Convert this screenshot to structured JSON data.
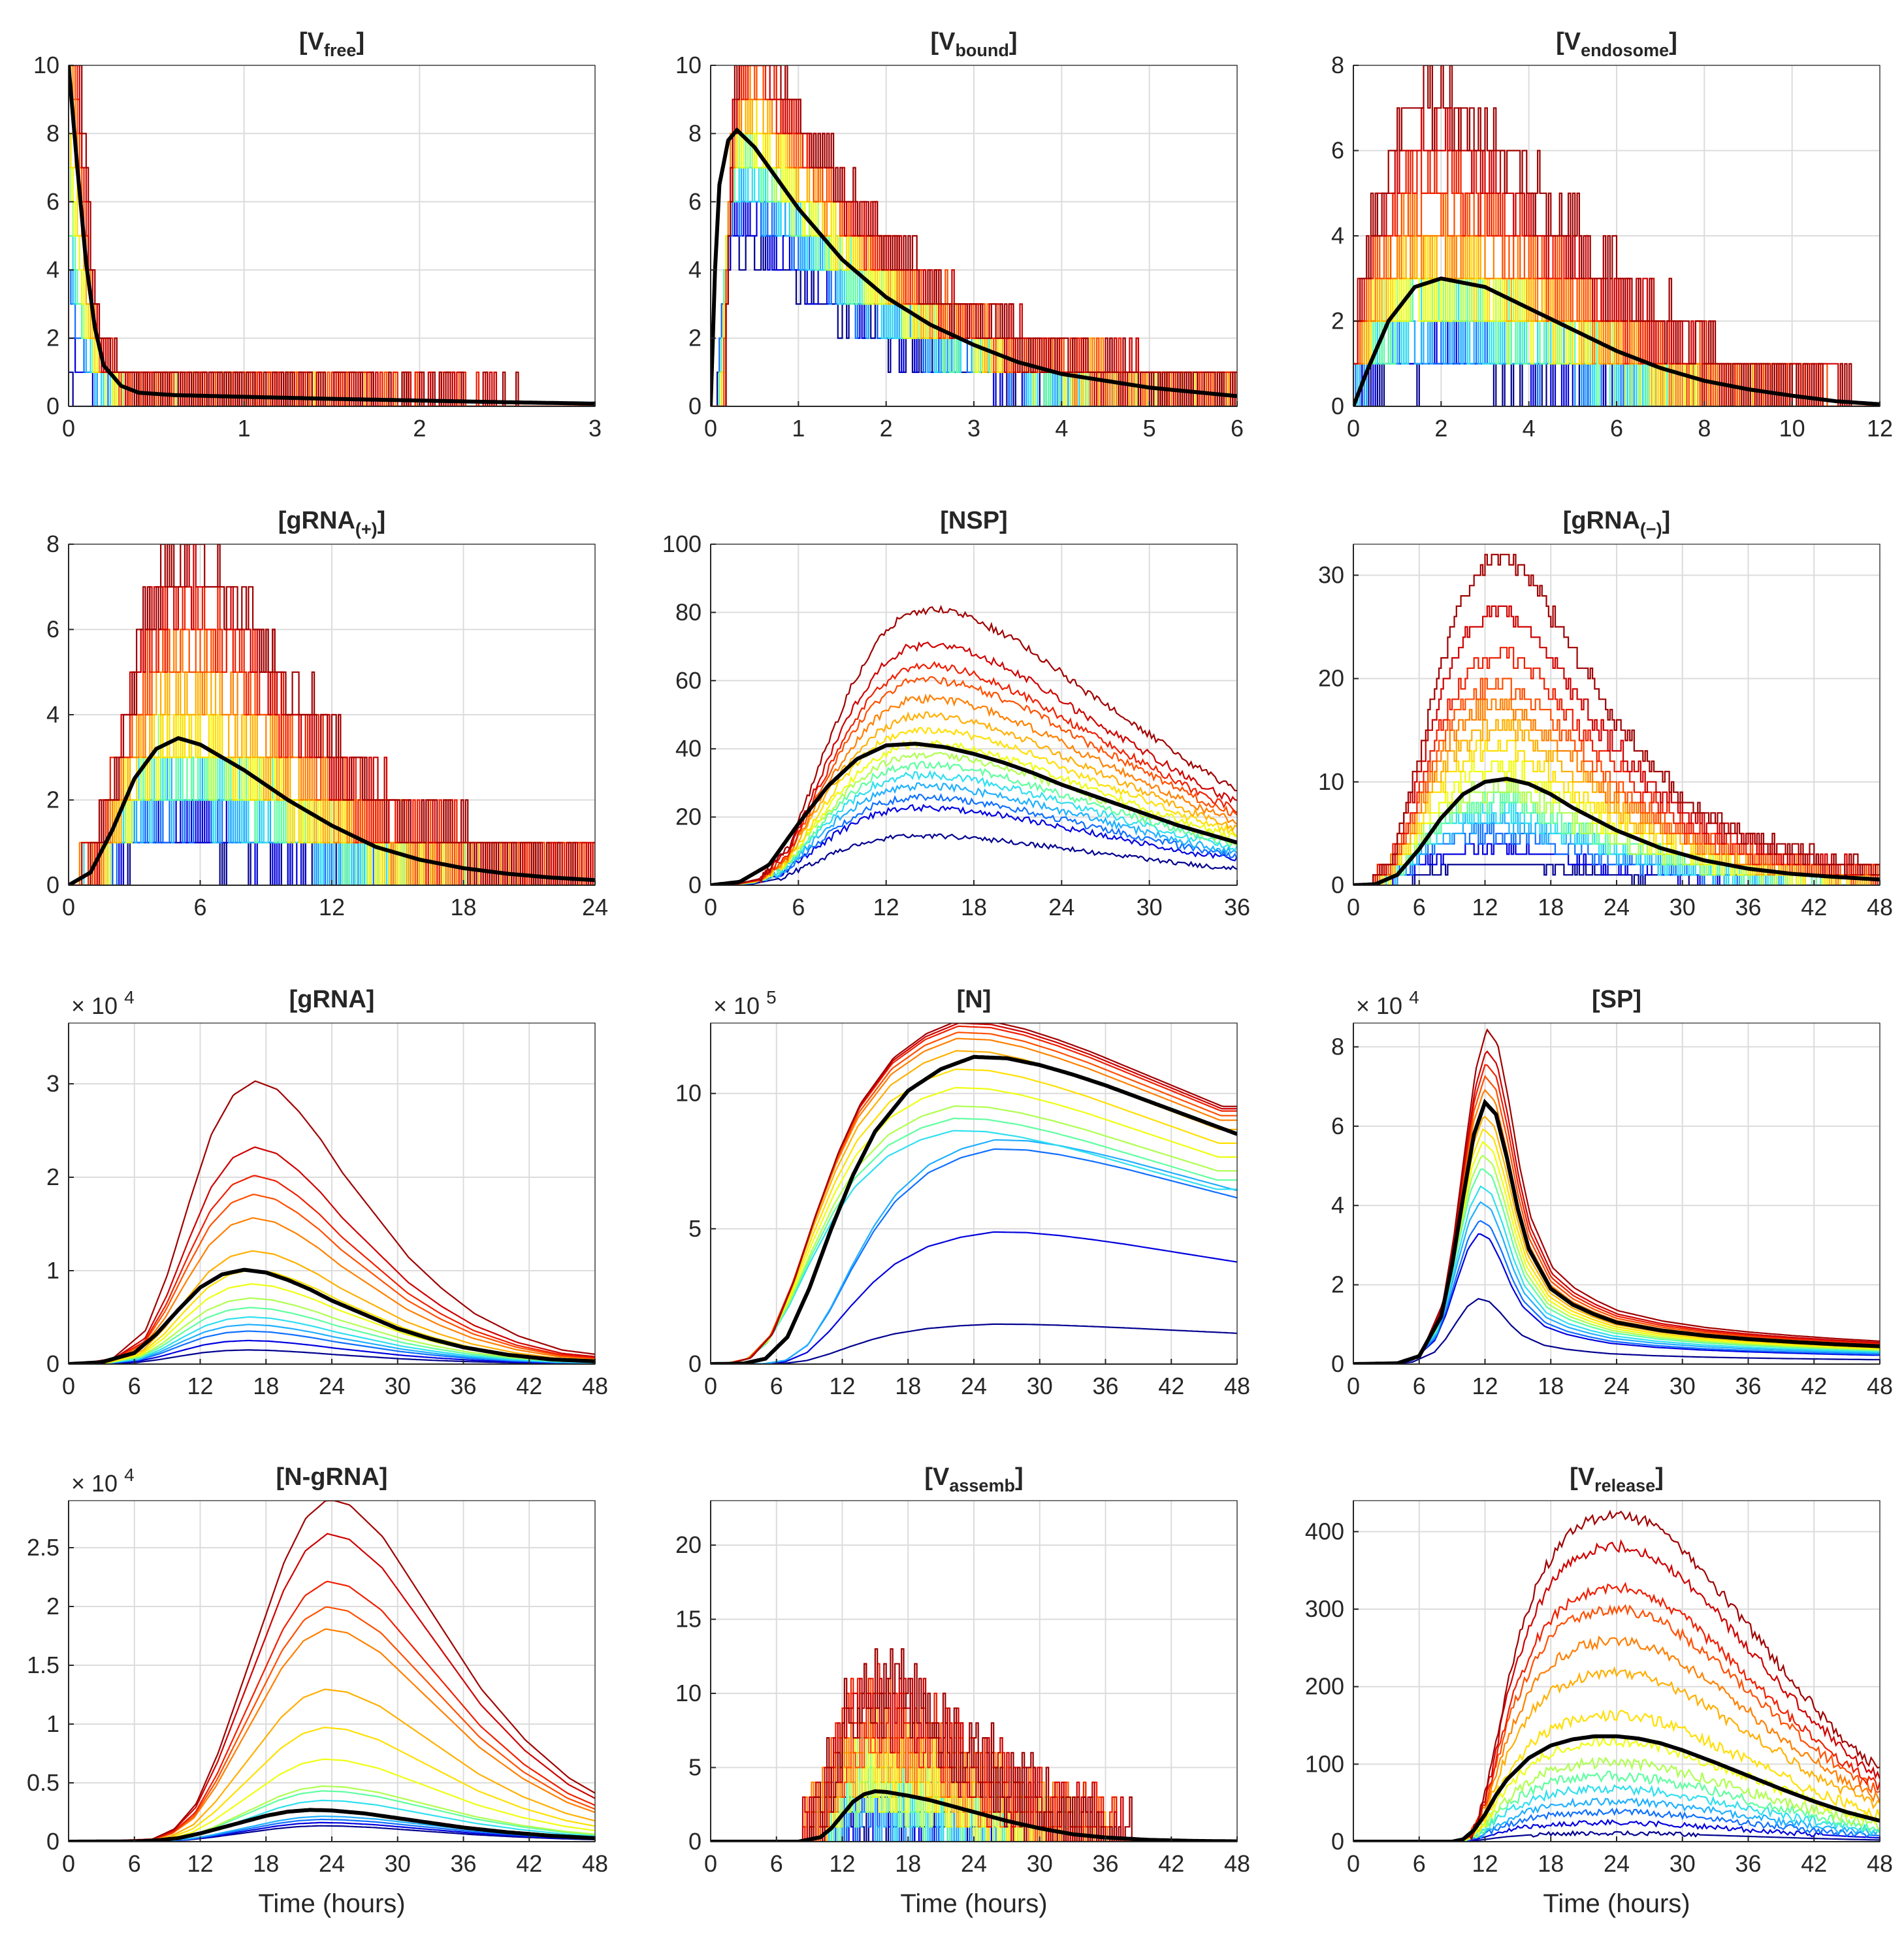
{
  "figure": {
    "xlabel": "Time (hours)",
    "mean_color": "#000000",
    "traj_colors": [
      "#00008F",
      "#0000DF",
      "#0F6FFF",
      "#1FAFFF",
      "#2FDFEF",
      "#5FFF9F",
      "#AFFF4F",
      "#EFFF0F",
      "#FFDF00",
      "#FFAF00",
      "#FF7F00",
      "#FF4F00",
      "#EF1F00",
      "#CF0000",
      "#9F0000"
    ]
  },
  "chart_data": [
    {
      "type": "line",
      "title": "[V",
      "title_sub": "free",
      "title_end": "]",
      "step": true,
      "noise": 0.9,
      "xlim": [
        0,
        3
      ],
      "ylim": [
        0,
        10
      ],
      "xticks": [
        0,
        1,
        2,
        3
      ],
      "xtick_labels": [
        "0",
        "1",
        "2",
        "3"
      ],
      "yticks": [
        0,
        2,
        4,
        6,
        8,
        10
      ],
      "ytick_labels": [
        "0",
        "2",
        "4",
        "6",
        "8",
        "10"
      ],
      "multiplier_base": "",
      "multiplier_exp": "",
      "xlabel": "",
      "mean": {
        "x": [
          0,
          0.05,
          0.1,
          0.15,
          0.2,
          0.3,
          0.4,
          0.6,
          1,
          1.5,
          2,
          2.5,
          3
        ],
        "y": [
          10,
          7,
          4.2,
          2.3,
          1.2,
          0.6,
          0.4,
          0.33,
          0.28,
          0.22,
          0.17,
          0.12,
          0.08
        ]
      },
      "traj_scales": [
        0.1,
        0.3,
        0.5,
        0.6,
        0.7,
        0.8,
        0.9,
        1,
        1.1,
        1.2,
        1.3,
        1.4,
        1.5,
        1.6,
        1.8
      ]
    },
    {
      "type": "line",
      "title": "[V",
      "title_sub": "bound",
      "title_end": "]",
      "step": true,
      "noise": 1.4,
      "xlim": [
        0,
        6
      ],
      "ylim": [
        0,
        10
      ],
      "xticks": [
        0,
        1,
        2,
        3,
        4,
        5,
        6
      ],
      "xtick_labels": [
        "0",
        "1",
        "2",
        "3",
        "4",
        "5",
        "6"
      ],
      "yticks": [
        0,
        2,
        4,
        6,
        8,
        10
      ],
      "ytick_labels": [
        "0",
        "2",
        "4",
        "6",
        "8",
        "10"
      ],
      "multiplier_base": "",
      "multiplier_exp": "",
      "xlabel": "",
      "mean": {
        "x": [
          0,
          0.05,
          0.1,
          0.2,
          0.3,
          0.5,
          1,
          1.5,
          2,
          2.5,
          3,
          3.5,
          4,
          5,
          6
        ],
        "y": [
          0,
          4,
          6.5,
          7.8,
          8.1,
          7.6,
          5.8,
          4.3,
          3.2,
          2.4,
          1.8,
          1.3,
          0.95,
          0.55,
          0.3
        ]
      },
      "traj_scales": [
        0.6,
        0.7,
        0.75,
        0.8,
        0.85,
        0.9,
        0.95,
        1,
        1.05,
        1.1,
        1.15,
        1.2,
        1.25,
        1.3,
        1.35
      ]
    },
    {
      "type": "line",
      "title": "[V",
      "title_sub": "endosome",
      "title_end": "]",
      "step": true,
      "noise": 1.4,
      "xlim": [
        0,
        12
      ],
      "ylim": [
        0,
        8
      ],
      "xticks": [
        0,
        2,
        4,
        6,
        8,
        10,
        12
      ],
      "xtick_labels": [
        "0",
        "2",
        "4",
        "6",
        "8",
        "10",
        "12"
      ],
      "yticks": [
        0,
        2,
        4,
        6,
        8
      ],
      "ytick_labels": [
        "0",
        "2",
        "4",
        "6",
        "8"
      ],
      "multiplier_base": "",
      "multiplier_exp": "",
      "xlabel": "",
      "mean": {
        "x": [
          0,
          0.3,
          0.8,
          1.4,
          2,
          3,
          4,
          5,
          6,
          7,
          8,
          9,
          10,
          11,
          12
        ],
        "y": [
          0,
          0.8,
          2,
          2.8,
          3,
          2.8,
          2.3,
          1.8,
          1.3,
          0.9,
          0.6,
          0.4,
          0.25,
          0.12,
          0.05
        ]
      },
      "traj_scales": [
        0.3,
        0.4,
        0.5,
        0.6,
        0.7,
        0.8,
        0.9,
        1,
        1.1,
        1.2,
        1.4,
        1.6,
        1.8,
        2.1,
        2.4
      ]
    },
    {
      "type": "line",
      "title": "[gRNA",
      "title_sub": "(+)",
      "title_end": "]",
      "step": true,
      "noise": 1.5,
      "xlim": [
        0,
        24
      ],
      "ylim": [
        0,
        8
      ],
      "xticks": [
        0,
        6,
        12,
        18,
        24
      ],
      "xtick_labels": [
        "0",
        "6",
        "12",
        "18",
        "24"
      ],
      "yticks": [
        0,
        2,
        4,
        6,
        8
      ],
      "ytick_labels": [
        "0",
        "2",
        "4",
        "6",
        "8"
      ],
      "multiplier_base": "",
      "multiplier_exp": "",
      "xlabel": "",
      "mean": {
        "x": [
          0,
          1,
          2,
          3,
          4,
          5,
          6,
          8,
          10,
          12,
          14,
          16,
          18,
          20,
          22,
          24
        ],
        "y": [
          0,
          0.3,
          1.3,
          2.5,
          3.2,
          3.45,
          3.3,
          2.7,
          2,
          1.4,
          0.9,
          0.6,
          0.4,
          0.27,
          0.18,
          0.12
        ]
      },
      "traj_scales": [
        0.3,
        0.4,
        0.5,
        0.6,
        0.7,
        0.8,
        0.9,
        1,
        1.1,
        1.3,
        1.5,
        1.7,
        1.9,
        2.1,
        2.3
      ]
    },
    {
      "type": "line",
      "title": "[NSP]",
      "title_sub": "",
      "title_end": "",
      "step": false,
      "noise": 2.2,
      "xlim": [
        0,
        36
      ],
      "ylim": [
        0,
        100
      ],
      "xticks": [
        0,
        6,
        12,
        18,
        24,
        30,
        36
      ],
      "xtick_labels": [
        "0",
        "6",
        "12",
        "18",
        "24",
        "30",
        "36"
      ],
      "yticks": [
        0,
        20,
        40,
        60,
        80,
        100
      ],
      "ytick_labels": [
        "0",
        "20",
        "40",
        "60",
        "80",
        "100"
      ],
      "multiplier_base": "",
      "multiplier_exp": "",
      "xlabel": "",
      "mean": {
        "x": [
          0,
          2,
          4,
          6,
          8,
          10,
          12,
          14,
          16,
          18,
          20,
          22,
          24,
          26,
          28,
          30,
          32,
          34,
          36
        ],
        "y": [
          0,
          1,
          6,
          18,
          29,
          37,
          41,
          41.5,
          40.5,
          38.5,
          36,
          33,
          29.5,
          26.5,
          23.5,
          20.5,
          17.5,
          15,
          12.5
        ]
      },
      "traj_scales": [
        0.35,
        0.55,
        0.62,
        0.7,
        0.78,
        0.85,
        0.92,
        1.0,
        1.1,
        1.2,
        1.32,
        1.45,
        1.55,
        1.7,
        1.95
      ]
    },
    {
      "type": "line",
      "title": "[gRNA",
      "title_sub": "(−)",
      "title_end": "]",
      "step": true,
      "noise": 1.8,
      "xlim": [
        0,
        48
      ],
      "ylim": [
        0,
        33
      ],
      "xticks": [
        0,
        6,
        12,
        18,
        24,
        30,
        36,
        42,
        48
      ],
      "xtick_labels": [
        "0",
        "6",
        "12",
        "18",
        "24",
        "30",
        "36",
        "42",
        "48"
      ],
      "yticks": [
        0,
        10,
        20,
        30
      ],
      "ytick_labels": [
        "0",
        "10",
        "20",
        "30"
      ],
      "multiplier_base": "",
      "multiplier_exp": "",
      "xlabel": "",
      "mean": {
        "x": [
          0,
          2,
          4,
          6,
          8,
          10,
          12,
          14,
          16,
          18,
          20,
          24,
          28,
          32,
          36,
          40,
          44,
          48
        ],
        "y": [
          0,
          0.1,
          1,
          3.5,
          6.5,
          8.8,
          10,
          10.3,
          9.8,
          8.8,
          7.5,
          5.3,
          3.6,
          2.4,
          1.6,
          1.1,
          0.8,
          0.55
        ]
      },
      "traj_scales": [
        0.2,
        0.35,
        0.5,
        0.6,
        0.7,
        0.8,
        0.9,
        1.1,
        1.3,
        1.5,
        1.7,
        1.9,
        2.2,
        2.6,
        3.1
      ]
    },
    {
      "type": "line",
      "title": "[gRNA]",
      "title_sub": "",
      "title_end": "",
      "step": false,
      "noise": 0,
      "xlim": [
        0,
        48
      ],
      "ylim": [
        0,
        3.65
      ],
      "xticks": [
        0,
        6,
        12,
        18,
        24,
        30,
        36,
        42,
        48
      ],
      "xtick_labels": [
        "0",
        "6",
        "12",
        "18",
        "24",
        "30",
        "36",
        "42",
        "48"
      ],
      "yticks": [
        0,
        1,
        2,
        3
      ],
      "ytick_labels": [
        "0",
        "1",
        "2",
        "3"
      ],
      "multiplier_base": "× 10",
      "multiplier_exp": "4",
      "xlabel": "",
      "mean": {
        "x": [
          0,
          3,
          6,
          8,
          10,
          12,
          14,
          16,
          18,
          20,
          22,
          24,
          27,
          30,
          33,
          36,
          40,
          44,
          48
        ],
        "y": [
          0,
          0.02,
          0.12,
          0.32,
          0.58,
          0.82,
          0.96,
          1.01,
          0.98,
          0.9,
          0.8,
          0.68,
          0.53,
          0.38,
          0.27,
          0.18,
          0.1,
          0.05,
          0.03
        ]
      },
      "traj_scales": [
        0.15,
        0.25,
        0.35,
        0.42,
        0.5,
        0.6,
        0.7,
        0.85,
        1.0,
        1.2,
        1.55,
        1.8,
        2.0,
        2.3,
        3.0
      ]
    },
    {
      "type": "line",
      "title": "[N]",
      "title_sub": "",
      "title_end": "",
      "step": false,
      "noise": 0,
      "xlim": [
        0,
        48
      ],
      "ylim": [
        0,
        12.6
      ],
      "xticks": [
        0,
        6,
        12,
        18,
        24,
        30,
        36,
        42,
        48
      ],
      "xtick_labels": [
        "0",
        "6",
        "12",
        "18",
        "24",
        "30",
        "36",
        "42",
        "48"
      ],
      "yticks": [
        0,
        5,
        10
      ],
      "ytick_labels": [
        "0",
        "5",
        "10"
      ],
      "multiplier_base": "× 10",
      "multiplier_exp": "5",
      "xlabel": "",
      "mean": {
        "x": [
          0,
          3,
          5,
          7,
          9,
          11,
          13,
          15,
          18,
          21,
          24,
          27,
          30,
          33,
          36,
          39,
          42,
          45,
          48
        ],
        "y": [
          0,
          0.02,
          0.2,
          1,
          2.8,
          5,
          7,
          8.6,
          10.1,
          10.9,
          11.35,
          11.3,
          11.05,
          10.7,
          10.3,
          9.85,
          9.4,
          8.95,
          8.5
        ]
      },
      "traj_scales": [
        0.13,
        0.43,
        0.7,
        0.73,
        0.76,
        0.8,
        0.84,
        0.9,
        0.96,
        1.02,
        1.06,
        1.08,
        1.1,
        1.11,
        1.12
      ]
    },
    {
      "type": "line",
      "title": "[SP]",
      "title_sub": "",
      "title_end": "",
      "step": false,
      "noise": 0,
      "xlim": [
        0,
        48
      ],
      "ylim": [
        0,
        8.6
      ],
      "xticks": [
        0,
        6,
        12,
        18,
        24,
        30,
        36,
        42,
        48
      ],
      "xtick_labels": [
        "0",
        "6",
        "12",
        "18",
        "24",
        "30",
        "36",
        "42",
        "48"
      ],
      "yticks": [
        0,
        2,
        4,
        6,
        8
      ],
      "ytick_labels": [
        "0",
        "2",
        "4",
        "6",
        "8"
      ],
      "multiplier_base": "× 10",
      "multiplier_exp": "4",
      "xlabel": "",
      "mean": {
        "x": [
          0,
          4,
          6,
          8,
          9,
          10,
          11,
          12,
          13,
          14,
          15,
          16,
          18,
          20,
          22,
          24,
          28,
          32,
          36,
          40,
          44,
          48
        ],
        "y": [
          0,
          0.02,
          0.2,
          1.2,
          2.5,
          4.2,
          5.8,
          6.6,
          6.3,
          5.2,
          3.9,
          2.9,
          1.9,
          1.5,
          1.25,
          1.05,
          0.85,
          0.72,
          0.63,
          0.56,
          0.5,
          0.45
        ]
      },
      "traj_scales": [
        0.25,
        0.5,
        0.55,
        0.62,
        0.68,
        0.75,
        0.8,
        0.85,
        0.9,
        0.95,
        1.05,
        1.1,
        1.15,
        1.2,
        1.28
      ]
    },
    {
      "type": "line",
      "title": "[N-gRNA]",
      "title_sub": "",
      "title_end": "",
      "step": false,
      "noise": 0,
      "xlim": [
        0,
        48
      ],
      "ylim": [
        0,
        2.9
      ],
      "xticks": [
        0,
        6,
        12,
        18,
        24,
        30,
        36,
        42,
        48
      ],
      "xtick_labels": [
        "0",
        "6",
        "12",
        "18",
        "24",
        "30",
        "36",
        "42",
        "48"
      ],
      "yticks": [
        0,
        0.5,
        1,
        1.5,
        2,
        2.5
      ],
      "ytick_labels": [
        "0",
        "0.5",
        "1",
        "1.5",
        "2",
        "2.5"
      ],
      "multiplier_base": "× 10",
      "multiplier_exp": "4",
      "xlabel": "Time (hours)",
      "mean": {
        "x": [
          0,
          6,
          8,
          10,
          12,
          14,
          16,
          18,
          20,
          22,
          24,
          27,
          30,
          33,
          36,
          40,
          44,
          48
        ],
        "y": [
          0,
          0.002,
          0.01,
          0.03,
          0.07,
          0.12,
          0.17,
          0.22,
          0.255,
          0.27,
          0.265,
          0.24,
          0.2,
          0.16,
          0.12,
          0.08,
          0.05,
          0.03
        ]
      },
      "traj_scales": [
        0.5,
        0.6,
        0.7,
        0.8,
        1.3,
        1.6,
        1.75,
        2.6,
        3.6,
        4.8,
        6.7,
        7.4,
        8.2,
        9.7,
        10.8
      ]
    },
    {
      "type": "line",
      "title": "[V",
      "title_sub": "assemb",
      "title_end": "]",
      "step": true,
      "noise": 6,
      "xlim": [
        0,
        48
      ],
      "ylim": [
        0,
        23
      ],
      "xticks": [
        0,
        6,
        12,
        18,
        24,
        30,
        36,
        42,
        48
      ],
      "xtick_labels": [
        "0",
        "6",
        "12",
        "18",
        "24",
        "30",
        "36",
        "42",
        "48"
      ],
      "yticks": [
        0,
        5,
        10,
        15,
        20
      ],
      "ytick_labels": [
        "0",
        "5",
        "10",
        "15",
        "20"
      ],
      "multiplier_base": "",
      "multiplier_exp": "",
      "xlabel": "Time (hours)",
      "mean": {
        "x": [
          0,
          8,
          10,
          11,
          12,
          13,
          14,
          15,
          16,
          18,
          20,
          22,
          24,
          27,
          30,
          33,
          36,
          40,
          44,
          48
        ],
        "y": [
          0,
          0,
          0.3,
          0.9,
          1.8,
          2.7,
          3.2,
          3.4,
          3.35,
          3.1,
          2.8,
          2.4,
          2,
          1.4,
          0.9,
          0.5,
          0.28,
          0.12,
          0.05,
          0.02
        ]
      },
      "traj_scales": [
        0.3,
        0.5,
        0.7,
        0.9,
        1,
        1.2,
        1.4,
        1.6,
        1.8,
        2,
        2.2,
        2.4,
        2.6,
        2.8,
        3.1
      ]
    },
    {
      "type": "line",
      "title": "[V",
      "title_sub": "release",
      "title_end": "]",
      "step": false,
      "noise": 14,
      "xlim": [
        0,
        48
      ],
      "ylim": [
        0,
        440
      ],
      "xticks": [
        0,
        6,
        12,
        18,
        24,
        30,
        36,
        42,
        48
      ],
      "xtick_labels": [
        "0",
        "6",
        "12",
        "18",
        "24",
        "30",
        "36",
        "42",
        "48"
      ],
      "yticks": [
        0,
        100,
        200,
        300,
        400
      ],
      "ytick_labels": [
        "0",
        "100",
        "200",
        "300",
        "400"
      ],
      "multiplier_base": "",
      "multiplier_exp": "",
      "xlabel": "Time (hours)",
      "mean": {
        "x": [
          0,
          9,
          10,
          11,
          12,
          13,
          14,
          16,
          18,
          20,
          22,
          24,
          26,
          28,
          30,
          33,
          36,
          39,
          42,
          45,
          48
        ],
        "y": [
          0,
          0,
          3,
          15,
          35,
          60,
          80,
          108,
          124,
          132,
          136,
          136,
          133,
          127,
          118,
          102,
          85,
          68,
          52,
          38,
          27
        ]
      },
      "traj_scales": [
        0.08,
        0.18,
        0.28,
        0.38,
        0.5,
        0.62,
        0.75,
        0.95,
        1.2,
        1.6,
        1.9,
        2.2,
        2.4,
        2.8,
        3.1
      ]
    }
  ]
}
